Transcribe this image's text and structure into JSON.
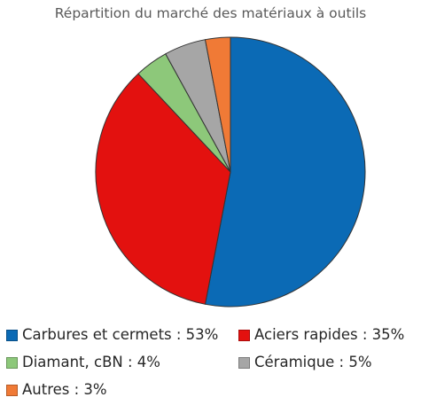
{
  "chart_data": {
    "type": "pie",
    "title": "Répartition du marché des matériaux à outils",
    "categories": [
      "Carbures et cermets",
      "Aciers rapides",
      "Diamant, cBN",
      "Céramique",
      "Autres"
    ],
    "values": [
      53,
      35,
      4,
      5,
      3
    ],
    "unit": "%",
    "colors": [
      "#0b6ab5",
      "#e3110f",
      "#8dc87a",
      "#a6a6a6",
      "#f07a36"
    ],
    "start_angle_deg": 0,
    "direction": "clockwise",
    "legend_position": "bottom",
    "legend": [
      {
        "label": "Carbures et cermets : 53%"
      },
      {
        "label": "Aciers rapides : 35%"
      },
      {
        "label": "Diamant, cBN : 4%"
      },
      {
        "label": "Céramique : 5%"
      },
      {
        "label": "Autres : 3%"
      }
    ]
  }
}
